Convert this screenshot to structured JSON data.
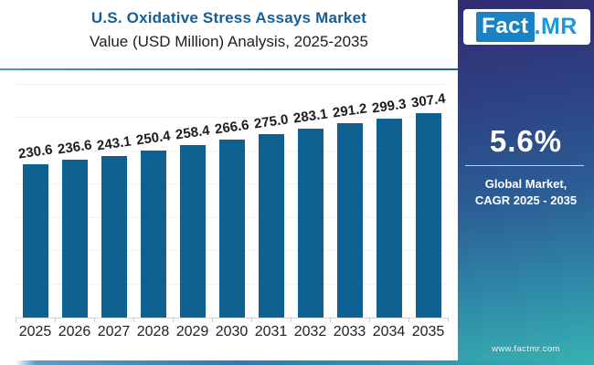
{
  "header": {
    "title": "U.S. Oxidative Stress Assays Market",
    "subtitle": "Value (USD Million) Analysis, 2025-2035"
  },
  "logo": {
    "part1": "Fact",
    "part2": ".MR"
  },
  "sidebar": {
    "cagr_value": "5.6%",
    "caption_line1": "Global Market,",
    "caption_line2": "CAGR 2025 - 2035",
    "website": "www.factmr.com"
  },
  "chart_data": {
    "type": "bar",
    "title": "U.S. Oxidative Stress Assays Market",
    "subtitle": "Value (USD Million) Analysis, 2025-2035",
    "categories": [
      "2025",
      "2026",
      "2027",
      "2028",
      "2029",
      "2030",
      "2031",
      "2032",
      "2033",
      "2034",
      "2035"
    ],
    "values": [
      230.6,
      236.6,
      243.1,
      250.4,
      258.4,
      266.6,
      275.0,
      283.1,
      291.2,
      299.3,
      307.4
    ],
    "xlabel": "",
    "ylabel": "",
    "ylim": [
      0,
      350
    ],
    "grid": "faint horizontal gridlines, y-axis hidden",
    "legend": "none",
    "data_labels": "value above each bar, slightly rotated",
    "bar_color": "#0e6191"
  },
  "colors": {
    "title_blue": "#175d94",
    "bar_blue": "#0e6191",
    "sidebar_gradient_top": "#322a72",
    "sidebar_gradient_bottom": "#38b2b1",
    "logo_box_blue": "#1a82c2",
    "logo_text_blue": "#1f97d4",
    "accent_line": "#1c6ea3"
  }
}
